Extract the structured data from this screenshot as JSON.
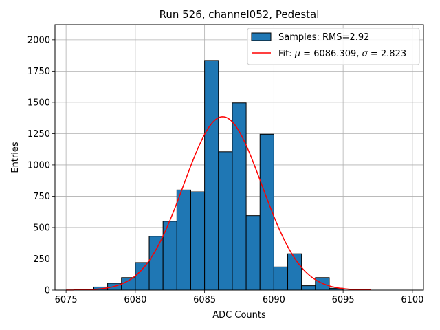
{
  "chart_data": {
    "type": "bar",
    "title": "Run 526, channel052, Pedestal",
    "xlabel": "ADC Counts",
    "ylabel": "Entries",
    "xlim": [
      6074.2,
      6100.8
    ],
    "ylim": [
      0,
      2120
    ],
    "xticks": [
      6075,
      6080,
      6085,
      6090,
      6095,
      6100
    ],
    "yticks": [
      0,
      250,
      500,
      750,
      1000,
      1250,
      1500,
      1750,
      2000
    ],
    "grid": true,
    "bar_color": "#1f77b4",
    "fit_color": "#ff0000",
    "bins": [
      {
        "left": 6077,
        "right": 6078,
        "value": 25
      },
      {
        "left": 6078,
        "right": 6079,
        "value": 55
      },
      {
        "left": 6079,
        "right": 6080,
        "value": 100
      },
      {
        "left": 6080,
        "right": 6081,
        "value": 220
      },
      {
        "left": 6081,
        "right": 6082,
        "value": 430
      },
      {
        "left": 6082,
        "right": 6083,
        "value": 550
      },
      {
        "left": 6083,
        "right": 6084,
        "value": 800
      },
      {
        "left": 6084,
        "right": 6085,
        "value": 785
      },
      {
        "left": 6085,
        "right": 6086,
        "value": 1835
      },
      {
        "left": 6086,
        "right": 6087,
        "value": 1105
      },
      {
        "left": 6087,
        "right": 6088,
        "value": 1495
      },
      {
        "left": 6088,
        "right": 6089,
        "value": 595
      },
      {
        "left": 6089,
        "right": 6090,
        "value": 1245
      },
      {
        "left": 6090,
        "right": 6091,
        "value": 185
      },
      {
        "left": 6091,
        "right": 6092,
        "value": 290
      },
      {
        "left": 6092,
        "right": 6093,
        "value": 35
      },
      {
        "left": 6093,
        "right": 6094,
        "value": 100
      },
      {
        "left": 6094,
        "right": 6095,
        "value": 15
      }
    ],
    "fit": {
      "mu": 6086.309,
      "sigma": 2.823,
      "amplitude": 1385,
      "x_range": [
        6075,
        6097
      ]
    },
    "legend": {
      "position": "upper-right",
      "samples_label": "Samples: RMS=2.92",
      "fit_label_prefix": "Fit: ",
      "fit_mu_symbol": "μ",
      "fit_mu_value": " = 6086.309, ",
      "fit_sigma_symbol": "σ",
      "fit_sigma_value": " = 2.823"
    }
  }
}
